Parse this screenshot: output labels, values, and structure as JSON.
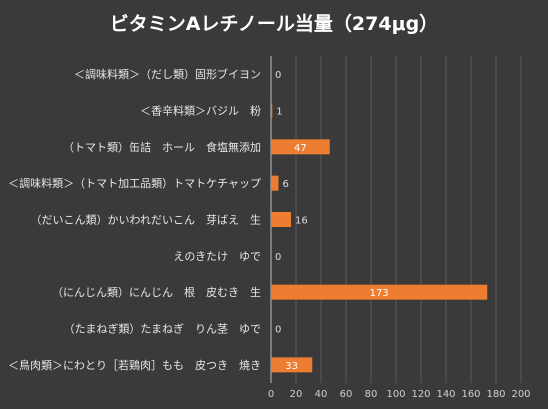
{
  "chart_data": {
    "type": "bar",
    "orientation": "horizontal",
    "title": "ビタミンAレチノール当量（274μg）",
    "categories": [
      "＜調味料類＞（だし類）固形ブイヨン",
      "＜香辛料類＞バジル　粉",
      "（トマト類）缶詰　ホール　食塩無添加",
      "＜調味料類＞（トマト加工品類）トマトケチャップ",
      "（だいこん類）かいわれだいこん　芽ばえ　生",
      "えのきたけ　ゆで",
      "（にんじん類）にんじん　根　皮むき　生",
      "（たまねぎ類）たまねぎ　りん茎　ゆで",
      "＜鳥肉類＞にわとり［若鶏肉］もも　皮つき　焼き"
    ],
    "values": [
      0,
      1,
      47,
      6,
      16,
      0,
      173,
      0,
      33
    ],
    "value_labels": [
      "0",
      "1",
      "47",
      "6",
      "16",
      "0",
      "173",
      "0",
      "33"
    ],
    "xlim": [
      0,
      200
    ],
    "x_ticks": [
      "0",
      "20",
      "40",
      "60",
      "80",
      "100",
      "120",
      "140",
      "160",
      "180",
      "200"
    ],
    "bar_color": "#ed7d31",
    "grid": true,
    "legend": "none"
  }
}
